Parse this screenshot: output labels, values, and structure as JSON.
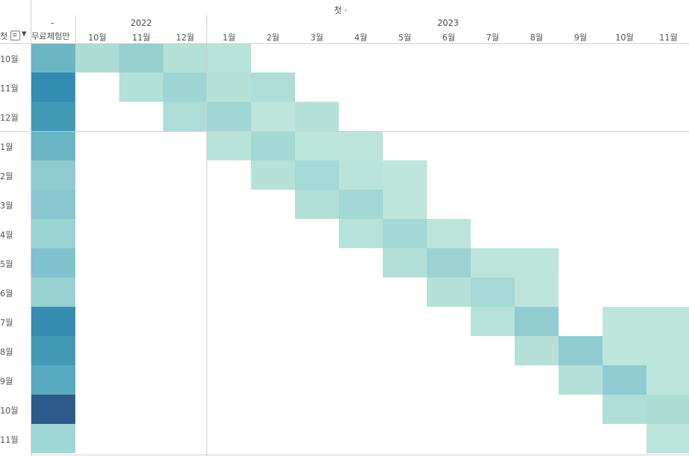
{
  "header": {
    "top_title": "첫 ·",
    "dash": "-",
    "row_header": "첫",
    "first_col_header": "무료체험만",
    "sort_arrow": "▼"
  },
  "years": [
    {
      "label": "2022"
    },
    {
      "label": "2023"
    }
  ],
  "columns": [
    "10월",
    "11월",
    "12월",
    "1월",
    "2월",
    "3월",
    "4월",
    "5월",
    "6월",
    "7월",
    "8월",
    "9월",
    "10월",
    "11월"
  ],
  "rows": [
    "10월",
    "11월",
    "12월",
    "1월",
    "2월",
    "3월",
    "4월",
    "5월",
    "6월",
    "7월",
    "8월",
    "9월",
    "10월",
    "11월"
  ],
  "first_col_colors": [
    "#6cb6c3",
    "#338cb2",
    "#409ab6",
    "#69b5c4",
    "#8ecbd1",
    "#87c6cf",
    "#99d3d2",
    "#7fc1cc",
    "#97d1d0",
    "#358bb0",
    "#4199b6",
    "#58aac0",
    "#2d5a8a",
    "#9ed7d5"
  ],
  "grid": [
    [
      "#addcd5",
      "#96d0d1",
      "#b5e1d8",
      "#b6e2d9",
      null,
      null,
      null,
      null,
      null,
      null,
      null,
      null,
      null,
      null
    ],
    [
      null,
      "#b3e0d8",
      "#9fd6d4",
      "#b5e1d9",
      "#aedcd6",
      null,
      null,
      null,
      null,
      null,
      null,
      null,
      null,
      null
    ],
    [
      null,
      null,
      "#aedcd6",
      "#a0d6d3",
      "#bde5dc",
      "#b6e1d9",
      null,
      null,
      null,
      null,
      null,
      null,
      null,
      null
    ],
    [
      null,
      null,
      null,
      "#b7e2d9",
      "#a4d8d4",
      "#bbe4db",
      "#bce4db",
      null,
      null,
      null,
      null,
      null,
      null,
      null
    ],
    [
      null,
      null,
      null,
      null,
      "#b5e1d8",
      "#a5d9d5",
      "#bae4db",
      "#bde5dc",
      null,
      null,
      null,
      null,
      null,
      null
    ],
    [
      null,
      null,
      null,
      null,
      null,
      "#b1ded7",
      "#a3d8d4",
      "#bde5dc",
      null,
      null,
      null,
      null,
      null,
      null
    ],
    [
      null,
      null,
      null,
      null,
      null,
      null,
      "#b6e2d9",
      "#a3d8d4",
      "#bce4db",
      null,
      null,
      null,
      null,
      null
    ],
    [
      null,
      null,
      null,
      null,
      null,
      null,
      null,
      "#b1dfd7",
      "#9cd3d2",
      "#bde5dc",
      "#bde5dc",
      null,
      null,
      null
    ],
    [
      null,
      null,
      null,
      null,
      null,
      null,
      null,
      null,
      "#b4e0d8",
      "#a6d9d5",
      "#bee5dc",
      null,
      null,
      null
    ],
    [
      null,
      null,
      null,
      null,
      null,
      null,
      null,
      null,
      null,
      "#b7e2d9",
      "#90ccd0",
      null,
      "#bde5dc",
      "#bde5dc"
    ],
    [
      null,
      null,
      null,
      null,
      null,
      null,
      null,
      null,
      null,
      null,
      "#b5e1d8",
      "#8fcbd0",
      "#bde5dc",
      "#bde5dc"
    ],
    [
      null,
      null,
      null,
      null,
      null,
      null,
      null,
      null,
      null,
      null,
      null,
      "#b5e1d9",
      "#8fcbd0",
      "#bde5dc"
    ],
    [
      null,
      null,
      null,
      null,
      null,
      null,
      null,
      null,
      null,
      null,
      null,
      null,
      "#b0ddd7",
      "#addcd5"
    ],
    [
      null,
      null,
      null,
      null,
      null,
      null,
      null,
      null,
      null,
      null,
      null,
      null,
      null,
      "#bbe4db"
    ]
  ]
}
